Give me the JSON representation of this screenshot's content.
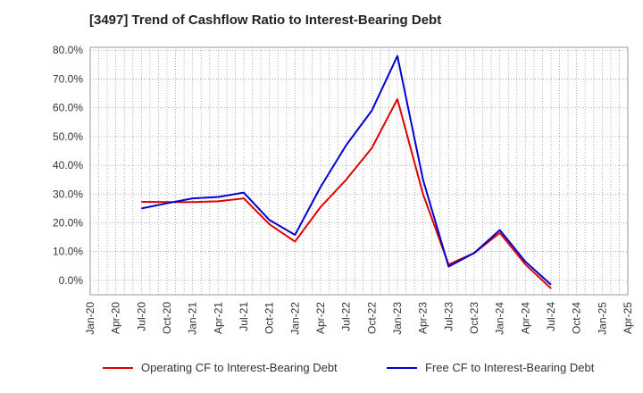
{
  "chart_data": {
    "type": "line",
    "title": "[3497]  Trend of Cashflow Ratio to Interest-Bearing Debt",
    "xlabel": "",
    "ylabel": "",
    "x": [
      "Jan-20",
      "Apr-20",
      "Jul-20",
      "Oct-20",
      "Jan-21",
      "Apr-21",
      "Jul-21",
      "Oct-21",
      "Jan-22",
      "Apr-22",
      "Jul-22",
      "Oct-22",
      "Jan-23",
      "Apr-23",
      "Jul-23",
      "Oct-23",
      "Jan-24",
      "Apr-24",
      "Jul-24",
      "Oct-24",
      "Jan-25",
      "Apr-25"
    ],
    "ylim": [
      -5,
      81
    ],
    "yticks": [
      0,
      10,
      20,
      30,
      40,
      50,
      60,
      70,
      80
    ],
    "ytick_labels": [
      "0.0%",
      "10.0%",
      "20.0%",
      "30.0%",
      "40.0%",
      "50.0%",
      "60.0%",
      "70.0%",
      "80.0%"
    ],
    "grid": true,
    "legend_position": "bottom",
    "series": [
      {
        "name": "Operating CF to Interest-Bearing Debt",
        "color": "#e00000",
        "values": [
          null,
          null,
          27.3,
          27.2,
          27.2,
          27.5,
          28.5,
          19.5,
          13.5,
          25.5,
          35.0,
          46.0,
          63.0,
          30.0,
          5.5,
          9.5,
          16.5,
          5.5,
          -2.8,
          null,
          null,
          null
        ]
      },
      {
        "name": "Free CF to Interest-Bearing Debt",
        "color": "#0000d0",
        "values": [
          null,
          null,
          25.0,
          26.8,
          28.5,
          29.0,
          30.5,
          21.0,
          15.8,
          32.5,
          47.0,
          59.0,
          78.0,
          35.0,
          4.8,
          9.5,
          17.5,
          6.5,
          -1.5,
          null,
          null,
          null
        ]
      }
    ]
  }
}
